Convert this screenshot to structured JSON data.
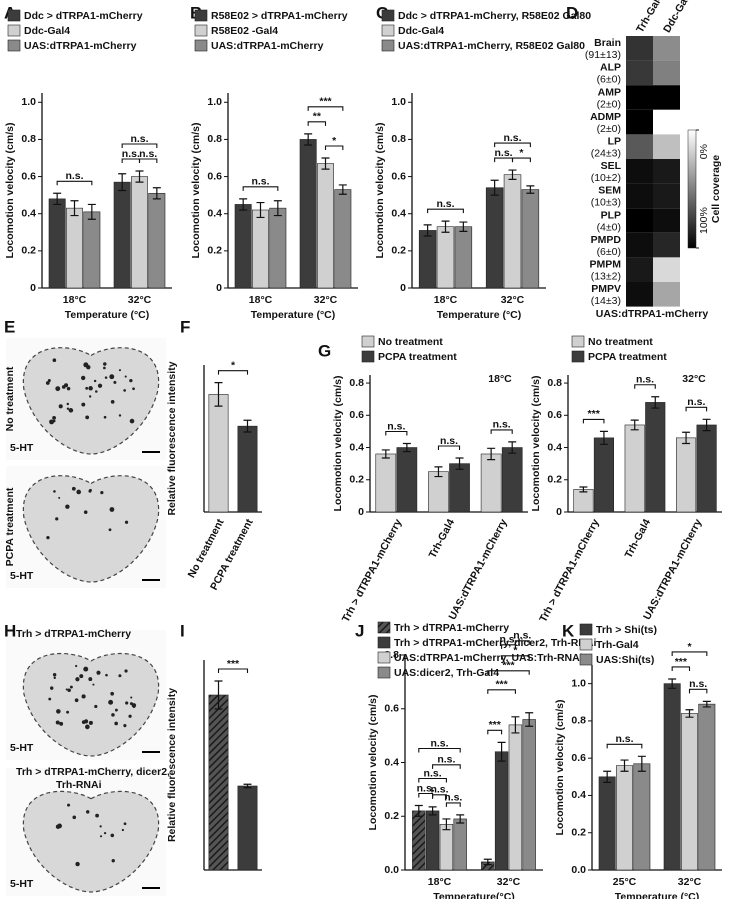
{
  "image_panels": [
    {
      "panel": "E",
      "images": [
        {
          "label": "No treatment",
          "stain": "5-HT"
        },
        {
          "label": "PCPA treatment",
          "stain": "5-HT"
        }
      ]
    },
    {
      "panel": "H",
      "images": [
        {
          "label": [
            "Trh > dTRPA1-mCherry"
          ],
          "stain": "5-HT"
        },
        {
          "label": [
            "Trh > dTRPA1-mCherry, dicer2,",
            "Trh-RNAi"
          ],
          "stain": "5-HT"
        }
      ]
    }
  ],
  "chart_data": [
    {
      "panel": "A",
      "type": "bar",
      "categories": [
        "18°C",
        "32°C"
      ],
      "xlabel": "Temperature (°C)",
      "ylabel": "Locomotion velocity (cm/s)",
      "ylim": [
        0,
        1.05
      ],
      "yticks": [
        0,
        0.2,
        0.4,
        0.6,
        0.8,
        {
          "value": 1,
          "label": "1.0"
        }
      ],
      "series": [
        {
          "name": "Ddc > dTRPA1-mCherry",
          "color": "#3c3c3c",
          "values": [
            0.48,
            0.57
          ],
          "errors": [
            0.03,
            0.045
          ]
        },
        {
          "name": "Ddc-Gal4",
          "color": "#d0d0d0",
          "values": [
            0.43,
            0.6
          ],
          "errors": [
            0.04,
            0.03
          ]
        },
        {
          "name": "UAS:dTRPA1-mCherry",
          "color": "#8a8a8a",
          "values": [
            0.41,
            0.51
          ],
          "errors": [
            0.04,
            0.03
          ]
        }
      ],
      "significance": [
        {
          "text": "n.s.",
          "group": 0,
          "from": 0,
          "to": 2
        },
        {
          "text": "n.s.",
          "group": 1,
          "from": 0,
          "to": 1
        },
        {
          "text": "n.s.",
          "group": 1,
          "from": 1,
          "to": 2
        },
        {
          "text": "n.s.",
          "group": 1,
          "from": 0,
          "to": 2
        }
      ]
    },
    {
      "panel": "B",
      "type": "bar",
      "categories": [
        "18°C",
        "32°C"
      ],
      "xlabel": "Temperature (°C)",
      "ylabel": "Locomotion velocity (cm/s)",
      "ylim": [
        0,
        1.05
      ],
      "yticks": [
        0,
        0.2,
        0.4,
        0.6,
        0.8,
        {
          "value": 1,
          "label": "1.0"
        }
      ],
      "series": [
        {
          "name": "R58E02 > dTRPA1-mCherry",
          "color": "#3c3c3c",
          "values": [
            0.45,
            0.8
          ],
          "errors": [
            0.03,
            0.03
          ]
        },
        {
          "name": "R58E02 -Gal4",
          "color": "#d0d0d0",
          "values": [
            0.42,
            0.67
          ],
          "errors": [
            0.04,
            0.03
          ]
        },
        {
          "name": "UAS:dTRPA1-mCherry",
          "color": "#8a8a8a",
          "values": [
            0.43,
            0.53
          ],
          "errors": [
            0.04,
            0.025
          ]
        }
      ],
      "significance": [
        {
          "text": "n.s.",
          "group": 0,
          "from": 0,
          "to": 2
        },
        {
          "text": "**",
          "group": 1,
          "from": 0,
          "to": 1
        },
        {
          "text": "*",
          "group": 1,
          "from": 1,
          "to": 2
        },
        {
          "text": "***",
          "group": 1,
          "from": 0,
          "to": 2
        }
      ]
    },
    {
      "panel": "C",
      "type": "bar",
      "categories": [
        "18°C",
        "32°C"
      ],
      "xlabel": "Temperature (°C)",
      "ylabel": "Locomotion velocity (cm/s)",
      "ylim": [
        0,
        1.05
      ],
      "yticks": [
        0,
        0.2,
        0.4,
        0.6,
        0.8,
        {
          "value": 1,
          "label": "1.0"
        }
      ],
      "series": [
        {
          "name": "Ddc > dTRPA1-mCherry, R58E02 Gal80",
          "color": "#3c3c3c",
          "values": [
            0.31,
            0.54
          ],
          "errors": [
            0.03,
            0.04
          ]
        },
        {
          "name": "Ddc-Gal4",
          "color": "#d0d0d0",
          "values": [
            0.33,
            0.61
          ],
          "errors": [
            0.03,
            0.025
          ]
        },
        {
          "name": "UAS:dTRPA1-mCherry, R58E02 Gal80",
          "color": "#8a8a8a",
          "values": [
            0.33,
            0.53
          ],
          "errors": [
            0.025,
            0.02
          ]
        }
      ],
      "significance": [
        {
          "text": "n.s.",
          "group": 0,
          "from": 0,
          "to": 2
        },
        {
          "text": "n.s.",
          "group": 1,
          "from": 0,
          "to": 1
        },
        {
          "text": "*",
          "group": 1,
          "from": 1,
          "to": 2
        },
        {
          "text": "n.s.",
          "group": 1,
          "from": 0,
          "to": 2
        }
      ]
    },
    {
      "panel": "D",
      "type": "heatmap",
      "columns": [
        "Trh-Gal4",
        "Ddc-Gal4"
      ],
      "rows": [
        {
          "label": "Brain",
          "n": "(91±13)"
        },
        {
          "label": "ALP",
          "n": "(6±0)"
        },
        {
          "label": "AMP",
          "n": "(2±0)"
        },
        {
          "label": "ADMP",
          "n": "(2±0)"
        },
        {
          "label": "LP",
          "n": "(24±3)"
        },
        {
          "label": "SEL",
          "n": "(10±2)"
        },
        {
          "label": "SEM",
          "n": "(10±3)"
        },
        {
          "label": "PLP",
          "n": "(4±0)"
        },
        {
          "label": "PMPD",
          "n": "(6±0)"
        },
        {
          "label": "PMPM",
          "n": "(13±2)"
        },
        {
          "label": "PMPV",
          "n": "(14±3)"
        }
      ],
      "values": [
        [
          80,
          45
        ],
        [
          78,
          50
        ],
        [
          100,
          100
        ],
        [
          100,
          0
        ],
        [
          65,
          25
        ],
        [
          95,
          90
        ],
        [
          95,
          90
        ],
        [
          100,
          95
        ],
        [
          95,
          85
        ],
        [
          90,
          15
        ],
        [
          95,
          35
        ]
      ],
      "clim": [
        0,
        100
      ],
      "cticks": [
        {
          "value": 0,
          "label": "0%"
        },
        {
          "value": 100,
          "label": "100%"
        }
      ],
      "colorbar_label": "Cell coverage",
      "xlabel": "UAS:dTRPA1-mCherry"
    },
    {
      "panel": "F",
      "type": "bar",
      "categories": [
        "No treatment",
        "PCPA treatment"
      ],
      "rotate_labels": true,
      "ylabel": "Relative fluorescence intensity",
      "ylim": [
        0,
        1.25
      ],
      "yticks": [],
      "values": [
        1,
        0.73
      ],
      "errors": [
        0.1,
        0.05
      ],
      "colors": [
        "#d0d0d0",
        "#3c3c3c"
      ],
      "significance": [
        {
          "text": "*",
          "from": 0,
          "to": 1
        }
      ]
    },
    {
      "panel": "G",
      "type": "bar",
      "categories": [
        "Trh > dTRPA1-mCherry",
        "Trh-Gal4",
        "UAS:dTRPA1-mCherry"
      ],
      "rotate_labels": true,
      "ylabel": "Locomotion velocity (cm/s)",
      "note": "18°C",
      "ylim": [
        0,
        0.85
      ],
      "yticks": [
        0,
        0.2,
        0.4,
        0.6,
        0.8
      ],
      "series": [
        {
          "name": "No treatment",
          "color": "#d0d0d0",
          "values": [
            0.36,
            0.25,
            0.36
          ],
          "errors": [
            0.025,
            0.03,
            0.035
          ]
        },
        {
          "name": "PCPA treatment",
          "color": "#3c3c3c",
          "values": [
            0.4,
            0.3,
            0.4
          ],
          "errors": [
            0.025,
            0.035,
            0.035
          ]
        }
      ],
      "significance": [
        {
          "text": "n.s.",
          "group": 0,
          "from": 0,
          "to": 1
        },
        {
          "text": "n.s.",
          "group": 1,
          "from": 0,
          "to": 1
        },
        {
          "text": "n.s.",
          "group": 2,
          "from": 0,
          "to": 1
        }
      ]
    },
    {
      "type": "bar",
      "categories": [
        "Trh > dTRPA1-mCherry",
        "Trh-Gal4",
        "UAS:dTRPA1-mCherry"
      ],
      "rotate_labels": true,
      "ylabel": "Locomotion velocity (cm/s)",
      "note": "32°C",
      "ylim": [
        0,
        0.85
      ],
      "yticks": [
        0,
        0.2,
        0.4,
        0.6,
        0.8
      ],
      "series": [
        {
          "name": "No treatment",
          "color": "#d0d0d0",
          "values": [
            0.14,
            0.54,
            0.46
          ],
          "errors": [
            0.015,
            0.03,
            0.035
          ]
        },
        {
          "name": "PCPA treatment",
          "color": "#3c3c3c",
          "values": [
            0.46,
            0.68,
            0.54
          ],
          "errors": [
            0.04,
            0.035,
            0.035
          ]
        }
      ],
      "significance": [
        {
          "text": "***",
          "group": 0,
          "from": 0,
          "to": 1
        },
        {
          "text": "n.s.",
          "group": 1,
          "from": 0,
          "to": 1
        },
        {
          "text": "n.s.",
          "group": 2,
          "from": 0,
          "to": 1
        }
      ]
    },
    {
      "panel": "I",
      "type": "bar",
      "categories": [
        null,
        null
      ],
      "ylabel": "Relative fluorescence intensity",
      "ylim": [
        0,
        1.2
      ],
      "yticks": [],
      "values": [
        1,
        0.48
      ],
      "errors": [
        0.08,
        0.01
      ],
      "colors": [
        "#3c3c3c",
        "#3c3c3c"
      ],
      "hatch": [
        true,
        false
      ],
      "significance": [
        {
          "text": "***",
          "from": 0,
          "to": 1
        }
      ]
    },
    {
      "panel": "J",
      "type": "bar",
      "categories": [
        "18°C",
        "32°C"
      ],
      "xlabel": "Temperature(°C)",
      "ylabel": "Locomotion velocity (cm/s)",
      "ylim": [
        0,
        0.8
      ],
      "yticks": [
        {
          "value": 0,
          "label": "0.0"
        },
        0.2,
        0.4,
        0.6,
        0.8
      ],
      "series": [
        {
          "name": "Trh > dTRPA1-mCherry",
          "color": "#3c3c3c",
          "hatch": true,
          "values": [
            0.22,
            0.03
          ],
          "errors": [
            0.02,
            0.01
          ]
        },
        {
          "name": "Trh > dTRPA1-mCherry, dicer2, Trh-RNAi",
          "color": "#3c3c3c",
          "values": [
            0.22,
            0.44
          ],
          "errors": [
            0.015,
            0.035
          ]
        },
        {
          "name": "UAS:dTRPA1-mCherry, UAS:Trh-RNAi",
          "color": "#d0d0d0",
          "values": [
            0.17,
            0.54
          ],
          "errors": [
            0.02,
            0.03
          ]
        },
        {
          "name": "UAS:dicer2, Trh-Gal4",
          "color": "#8a8a8a",
          "values": [
            0.19,
            0.56
          ],
          "errors": [
            0.015,
            0.025
          ]
        }
      ],
      "significance": [
        {
          "text": "n.s.",
          "group": 0,
          "from": 0,
          "to": 1
        },
        {
          "text": "n.s.",
          "group": 0,
          "from": 1,
          "to": 2
        },
        {
          "text": "n.s.",
          "group": 0,
          "from": 2,
          "to": 3
        },
        {
          "text": "n.s.",
          "group": 0,
          "from": 0,
          "to": 2
        },
        {
          "text": "n.s.",
          "group": 0,
          "from": 1,
          "to": 3
        },
        {
          "text": "n.s.",
          "group": 0,
          "from": 0,
          "to": 3
        },
        {
          "text": "***",
          "group": 1,
          "from": 0,
          "to": 1
        },
        {
          "text": "***",
          "group": 1,
          "from": 0,
          "to": 2
        },
        {
          "text": "***",
          "group": 1,
          "from": 0,
          "to": 3
        },
        {
          "text": "*",
          "group": 1,
          "from": 1,
          "to": 3
        },
        {
          "text": "n.s.",
          "group": 1,
          "from": 1,
          "to": 2
        },
        {
          "text": "n.s.",
          "group": 1,
          "from": 2,
          "to": 3
        }
      ]
    },
    {
      "panel": "K",
      "type": "bar",
      "categories": [
        "25°C",
        "32°C"
      ],
      "xlabel": "Temperature (°C)",
      "ylabel": "Locomotion velocity (cm/s)",
      "ylim": [
        0,
        1.1
      ],
      "yticks": [
        {
          "value": 0,
          "label": "0.0"
        },
        0.2,
        0.4,
        0.6,
        0.8,
        {
          "value": 1,
          "label": "1.0"
        }
      ],
      "series": [
        {
          "name": "Trh > Shi(ts)",
          "color": "#3c3c3c",
          "values": [
            0.5,
            1
          ],
          "errors": [
            0.03,
            0.025
          ]
        },
        {
          "name": "Trh-Gal4",
          "color": "#d0d0d0",
          "values": [
            0.56,
            0.84
          ],
          "errors": [
            0.03,
            0.02
          ]
        },
        {
          "name": "UAS:Shi(ts)",
          "color": "#8a8a8a",
          "values": [
            0.57,
            0.89
          ],
          "errors": [
            0.04,
            0.015
          ]
        }
      ],
      "significance": [
        {
          "text": "n.s.",
          "group": 0,
          "from": 0,
          "to": 2
        },
        {
          "text": "***",
          "group": 1,
          "from": 0,
          "to": 1
        },
        {
          "text": "n.s.",
          "group": 1,
          "from": 1,
          "to": 2
        },
        {
          "text": "*",
          "group": 1,
          "from": 0,
          "to": 2
        }
      ]
    }
  ]
}
